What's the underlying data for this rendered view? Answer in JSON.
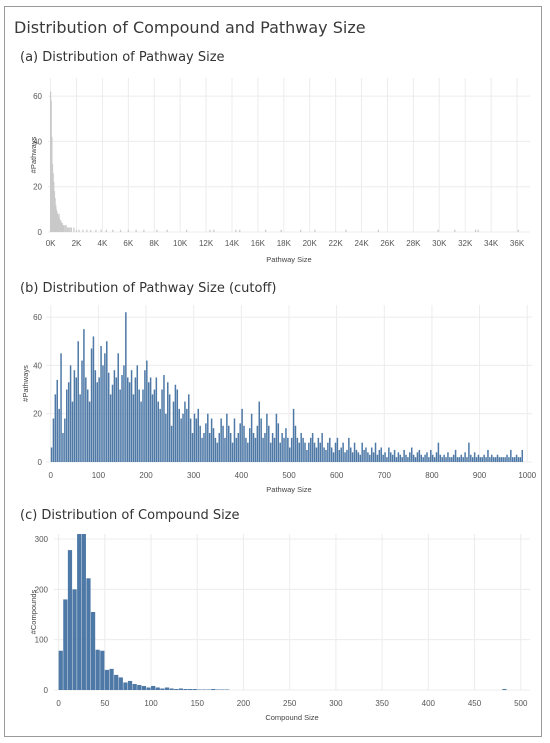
{
  "page": {
    "title": "Distribution of Compound and Pathway Size"
  },
  "chart_data": [
    {
      "type": "bar",
      "title": "(a) Distribution of Pathway Size",
      "xlabel": "Pathway Size",
      "ylabel": "#Pathways",
      "xlim": [
        -200,
        37000
      ],
      "ylim": [
        0,
        68
      ],
      "x_ticks": [
        "0K",
        "2K",
        "4K",
        "6K",
        "8K",
        "10K",
        "12K",
        "14K",
        "16K",
        "18K",
        "20K",
        "22K",
        "24K",
        "26K",
        "28K",
        "30K",
        "32K",
        "34K",
        "36K"
      ],
      "y_ticks": [
        0,
        20,
        40,
        60
      ],
      "grid": true,
      "color": "#c9c9c9",
      "x": [
        0,
        50,
        100,
        150,
        200,
        250,
        300,
        350,
        400,
        450,
        500,
        550,
        600,
        650,
        700,
        750,
        800,
        850,
        900,
        950,
        1000,
        1100,
        1200,
        1300,
        1400,
        1500,
        1600,
        1800,
        2000,
        2200,
        2500,
        2800,
        3100,
        3500,
        3900,
        4300,
        4800,
        5400,
        6000,
        6600,
        7200,
        8200,
        9000,
        10500,
        12300,
        12600,
        14300,
        14600,
        16600,
        17800,
        19300,
        20400,
        22800,
        25300,
        29900,
        31200,
        32800,
        33000,
        36100
      ],
      "values": [
        62,
        58,
        42,
        30,
        26,
        22,
        18,
        15,
        12,
        10,
        9,
        8,
        7,
        8,
        6,
        5,
        5,
        4,
        4,
        3,
        3,
        3,
        3,
        2,
        2,
        2,
        2,
        2,
        1,
        1,
        1,
        1,
        1,
        1,
        1,
        1,
        1,
        1,
        1,
        1,
        1,
        1,
        1,
        1,
        1,
        1,
        1,
        1,
        1,
        1,
        1,
        1,
        1,
        1,
        1,
        1,
        1,
        1,
        1
      ]
    },
    {
      "type": "bar",
      "title": "(b) Distribution of Pathway Size (cutoff)",
      "xlabel": "Pathway Size",
      "ylabel": "#Pathways",
      "xlim": [
        -10,
        1010
      ],
      "ylim": [
        0,
        65
      ],
      "x_ticks": [
        0,
        100,
        200,
        300,
        400,
        500,
        600,
        700,
        800,
        900,
        1000
      ],
      "y_ticks": [
        0,
        20,
        40,
        60
      ],
      "grid": true,
      "color": "#4e79a7",
      "bin_width": 4,
      "values": [
        6,
        18,
        28,
        34,
        22,
        45,
        12,
        18,
        30,
        33,
        40,
        25,
        38,
        35,
        50,
        28,
        42,
        55,
        35,
        30,
        25,
        47,
        52,
        38,
        33,
        35,
        48,
        40,
        45,
        50,
        37,
        28,
        32,
        38,
        35,
        45,
        30,
        36,
        40,
        62,
        35,
        33,
        38,
        28,
        35,
        40,
        30,
        25,
        30,
        38,
        42,
        33,
        35,
        28,
        30,
        35,
        25,
        22,
        30,
        36,
        20,
        33,
        28,
        15,
        25,
        32,
        30,
        22,
        18,
        20,
        25,
        22,
        28,
        18,
        12,
        20,
        18,
        22,
        15,
        10,
        12,
        16,
        20,
        12,
        18,
        14,
        10,
        8,
        12,
        18,
        15,
        10,
        20,
        15,
        12,
        8,
        18,
        10,
        12,
        16,
        22,
        15,
        10,
        8,
        14,
        20,
        12,
        10,
        15,
        25,
        18,
        10,
        12,
        20,
        15,
        8,
        12,
        10,
        20,
        16,
        8,
        12,
        10,
        14,
        10,
        6,
        10,
        22,
        15,
        10,
        8,
        12,
        10,
        8,
        5,
        8,
        10,
        12,
        8,
        6,
        10,
        8,
        12,
        6,
        5,
        8,
        10,
        6,
        4,
        8,
        10,
        5,
        6,
        8,
        4,
        5,
        10,
        6,
        4,
        8,
        5,
        4,
        3,
        8,
        5,
        6,
        4,
        3,
        6,
        4,
        8,
        3,
        5,
        6,
        3,
        4,
        2,
        6,
        4,
        3,
        5,
        2,
        4,
        3,
        2,
        5,
        3,
        2,
        4,
        6,
        3,
        2,
        4,
        5,
        3,
        2,
        3,
        4,
        2,
        5,
        3,
        2,
        4,
        8,
        3,
        2,
        3,
        2,
        4,
        2,
        2,
        3,
        5,
        2,
        2,
        3,
        2,
        4,
        2,
        8,
        3,
        2,
        4,
        2,
        3,
        2,
        2,
        3,
        2,
        5,
        2,
        3,
        2,
        2,
        3,
        2,
        2,
        2,
        2,
        3,
        2,
        5,
        2,
        2,
        3,
        2,
        2,
        5
      ]
    },
    {
      "type": "bar",
      "title": "(c) Distribution of Compound Size",
      "xlabel": "Compound Size",
      "ylabel": "#Compounds",
      "xlim": [
        -5,
        510
      ],
      "ylim": [
        0,
        310
      ],
      "x_ticks": [
        0,
        50,
        100,
        150,
        200,
        250,
        300,
        350,
        400,
        450,
        500
      ],
      "y_ticks": [
        0,
        100,
        200,
        300
      ],
      "grid": true,
      "color": "#4e79a7",
      "bin_width": 5,
      "values": [
        78,
        180,
        278,
        200,
        310,
        310,
        222,
        155,
        80,
        78,
        40,
        42,
        30,
        25,
        15,
        18,
        12,
        10,
        8,
        5,
        8,
        5,
        3,
        5,
        3,
        2,
        3,
        2,
        2,
        2,
        1,
        1,
        1,
        2,
        1,
        1,
        1,
        0,
        0,
        0,
        0,
        0,
        0,
        0,
        0,
        0,
        0,
        0,
        0,
        0,
        0,
        0,
        0,
        0,
        0,
        0,
        0,
        0,
        0,
        0,
        0,
        0,
        0,
        0,
        0,
        0,
        0,
        0,
        0,
        0,
        0,
        0,
        0,
        0,
        0,
        0,
        0,
        0,
        0,
        0,
        0,
        0,
        0,
        0,
        0,
        0,
        0,
        0,
        0,
        0,
        0,
        0,
        0,
        0,
        0,
        0,
        2
      ]
    }
  ]
}
